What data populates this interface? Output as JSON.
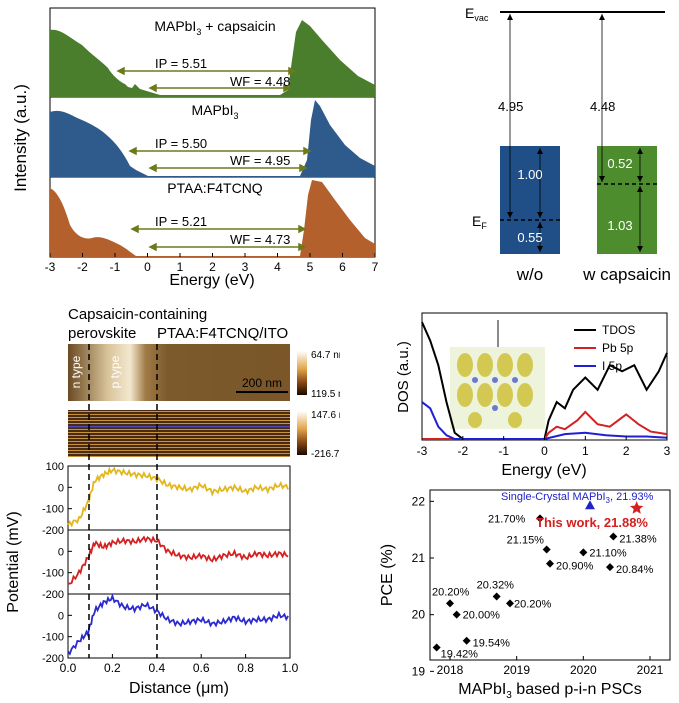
{
  "colors": {
    "green": "#4a7d2c",
    "blue": "#2f5a8c",
    "orange": "#b4602c",
    "arrow": "#6d7a1c",
    "tdos": "#000000",
    "pb5p": "#d42020",
    "i5p": "#1f1fd6",
    "yellow_trace": "#e2b61c",
    "red_trace": "#d42020",
    "blue_trace": "#2a2ad0",
    "scan_line": "#2233dd",
    "highlight_pce": "#d42020",
    "single_crystal": "#2222cc",
    "green_box": "#4e8d2e",
    "blue_box": "#1f4f86"
  },
  "upsPanel": {
    "yLabel": "Intensity (a.u.)",
    "xLabel": "Energy (eV)",
    "xTicks": [
      "-3",
      "-2",
      "-1",
      "0",
      "1",
      "2",
      "3",
      "4",
      "5",
      "6",
      "7"
    ],
    "sub1": {
      "label_main": "MAPbI",
      "label_sub": "3",
      "label_rest": " + capsaicin",
      "ip": "IP = 5.51",
      "wf": "WF = 4.48"
    },
    "sub2": {
      "label_main": "MAPbI",
      "label_sub": "3",
      "ip": "IP = 5.50",
      "wf": "WF = 4.95"
    },
    "sub3": {
      "label_main": "PTAA:F4TCNQ",
      "ip": "IP = 5.21",
      "wf": "WF = 4.73"
    }
  },
  "energyDiagram": {
    "evac_main": "E",
    "evac_sub": "vac",
    "ef_main": "E",
    "ef_sub": "F",
    "left": {
      "gap_label": "4.95",
      "upper": "1.00",
      "lower": "0.55",
      "caption": "w/o"
    },
    "right": {
      "gap_label": "4.48",
      "upper": "0.52",
      "lower": "1.03",
      "caption": "w capsaicin"
    }
  },
  "kpfmPanel": {
    "title_left_line1": "Capsaicin-containing",
    "title_left_line2": "perovskite",
    "title_right": "PTAA:F4TCNQ/ITO",
    "n_type": "n type",
    "p_type": "p type",
    "scalebar": "200 nm",
    "height_max": "64.7 nm",
    "height_min": "119.5 nm",
    "pot_max": "147.6 mV",
    "pot_min": "-216.7 mV",
    "yLabel": "Potential (mV)",
    "xLabel": "Distance (μm)",
    "xTicks": [
      "0.0",
      "0.2",
      "0.4",
      "0.6",
      "0.8",
      "1.0"
    ],
    "yTicks": [
      "100",
      "0",
      "-100",
      "-200"
    ]
  },
  "dosPanel": {
    "yLabel": "DOS (a.u.)",
    "xLabel": "Energy (eV)",
    "xTicks": [
      "-3",
      "-2",
      "-1",
      "0",
      "1",
      "2",
      "3"
    ],
    "legend": [
      "TDOS",
      "Pb 5p",
      "I 5p"
    ]
  },
  "pcePanel": {
    "yLabel": "PCE (%)",
    "xLabel_main": "MAPbI",
    "xLabel_sub": "3",
    "xLabel_rest": " based p-i-n PSCs",
    "xTicks": [
      "2018",
      "2019",
      "2020",
      "2021"
    ],
    "yTicks": [
      "19",
      "20",
      "21",
      "22"
    ],
    "single_crystal_label": "Single-Crystal MAPbI",
    "single_crystal_sub": "3",
    "single_crystal_value": ", 21.93%",
    "this_work_label": "This work, 21.88%"
  },
  "chart_data": [
    {
      "type": "area",
      "title": "",
      "xlabel": "Energy (eV)",
      "ylabel": "Intensity (a.u.)",
      "xlim": [
        -3,
        7
      ],
      "series": [
        {
          "name": "MAPbI3 + capsaicin",
          "ip": 5.51,
          "wf": 4.48
        },
        {
          "name": "MAPbI3",
          "ip": 5.5,
          "wf": 4.95
        },
        {
          "name": "PTAA:F4TCNQ",
          "ip": 5.21,
          "wf": 4.73
        }
      ]
    },
    {
      "type": "bar",
      "title": "",
      "categories": [
        "w/o",
        "w capsaicin"
      ],
      "series": [
        {
          "name": "Evac to EF",
          "values": [
            4.95,
            4.48
          ]
        },
        {
          "name": "EF to upper",
          "values": [
            1.0,
            0.52
          ]
        },
        {
          "name": "lower to EF",
          "values": [
            0.55,
            1.03
          ]
        }
      ]
    },
    {
      "type": "line",
      "title": "",
      "xlabel": "Distance (μm)",
      "ylabel": "Potential (mV)",
      "xlim": [
        0,
        1.0
      ],
      "ylim": [
        -200,
        100
      ],
      "series": [
        {
          "name": "trace1",
          "x": [
            0,
            0.05,
            0.09,
            0.12,
            0.16,
            0.2,
            0.25,
            0.3,
            0.35,
            0.4,
            0.45,
            0.5,
            0.55,
            0.6,
            0.65,
            0.7,
            0.75,
            0.8,
            0.85,
            0.9,
            0.95,
            1.0
          ],
          "values": [
            -175,
            -150,
            -70,
            30,
            60,
            80,
            70,
            60,
            55,
            40,
            10,
            0,
            -10,
            10,
            -20,
            -10,
            0,
            -20,
            0,
            -10,
            10,
            0
          ]
        },
        {
          "name": "trace2",
          "x": [
            0,
            0.05,
            0.09,
            0.12,
            0.16,
            0.2,
            0.25,
            0.3,
            0.35,
            0.4,
            0.45,
            0.5,
            0.55,
            0.6,
            0.65,
            0.7,
            0.75,
            0.8,
            0.85,
            0.9,
            0.95,
            1.0
          ],
          "values": [
            -160,
            -100,
            -30,
            40,
            20,
            40,
            50,
            45,
            60,
            50,
            0,
            -20,
            -30,
            -20,
            -40,
            -20,
            -10,
            -30,
            -10,
            -20,
            -10,
            -20
          ]
        },
        {
          "name": "trace3",
          "x": [
            0,
            0.05,
            0.09,
            0.12,
            0.16,
            0.2,
            0.25,
            0.3,
            0.35,
            0.4,
            0.45,
            0.5,
            0.55,
            0.6,
            0.65,
            0.7,
            0.75,
            0.8,
            0.85,
            0.9,
            0.95,
            1.0
          ],
          "values": [
            -180,
            -120,
            -80,
            20,
            60,
            80,
            40,
            30,
            50,
            20,
            -20,
            -40,
            -30,
            -20,
            -40,
            -30,
            -10,
            -30,
            -20,
            -20,
            0,
            -10
          ]
        }
      ]
    },
    {
      "type": "line",
      "title": "",
      "xlabel": "Energy (eV)",
      "ylabel": "DOS (a.u.)",
      "xlim": [
        -3,
        3
      ],
      "series": [
        {
          "name": "TDOS",
          "x": [
            -3,
            -2.8,
            -2.6,
            -2.4,
            -2.2,
            -2,
            -1,
            0,
            0.1,
            0.3,
            0.5,
            0.7,
            1,
            1.3,
            1.6,
            1.9,
            2.2,
            2.5,
            2.8,
            3
          ],
          "values": [
            9.5,
            8,
            6,
            3,
            0.5,
            0,
            0,
            0,
            1.5,
            3,
            2.5,
            4,
            5,
            4,
            6,
            5.5,
            6,
            4,
            5.5,
            7
          ]
        },
        {
          "name": "Pb 5p",
          "x": [
            -3,
            -2,
            -1,
            0,
            0.1,
            0.3,
            0.5,
            0.8,
            1,
            1.3,
            1.6,
            2,
            2.3,
            2.6,
            3
          ],
          "values": [
            0,
            0,
            0,
            0,
            0.5,
            1.0,
            0.8,
            1.5,
            2.2,
            1.2,
            1.0,
            2.0,
            1.2,
            0.6,
            0.4
          ]
        },
        {
          "name": "I 5p",
          "x": [
            -3,
            -2.8,
            -2.6,
            -2.4,
            -2.2,
            -2,
            -1,
            0,
            0.5,
            1,
            1.5,
            2,
            2.5,
            3
          ],
          "values": [
            3,
            2.5,
            1,
            0.3,
            0,
            0,
            0,
            0,
            0.4,
            0.5,
            0.3,
            0.2,
            0.2,
            0.1
          ]
        }
      ]
    },
    {
      "type": "scatter",
      "title": "",
      "xlabel": "MAPbI3 based p-i-n PSCs",
      "ylabel": "PCE (%)",
      "xlim": [
        2017.7,
        2021.3
      ],
      "ylim": [
        19.2,
        22.2
      ],
      "points": [
        {
          "x": 2017.8,
          "y": 19.42,
          "label": "19.42%"
        },
        {
          "x": 2018.25,
          "y": 19.54,
          "label": "19.54%"
        },
        {
          "x": 2018.1,
          "y": 20.0,
          "label": "20.00%"
        },
        {
          "x": 2018.0,
          "y": 20.2,
          "label": "20.20%"
        },
        {
          "x": 2018.7,
          "y": 20.32,
          "label": "20.32%"
        },
        {
          "x": 2018.9,
          "y": 20.2,
          "label": "20.20%"
        },
        {
          "x": 2019.35,
          "y": 21.7,
          "label": "21.70%"
        },
        {
          "x": 2019.45,
          "y": 21.15,
          "label": "21.15%"
        },
        {
          "x": 2019.5,
          "y": 20.9,
          "label": "20.90%"
        },
        {
          "x": 2020.0,
          "y": 21.1,
          "label": "21.10%"
        },
        {
          "x": 2020.45,
          "y": 21.38,
          "label": "21.38%"
        },
        {
          "x": 2020.4,
          "y": 20.84,
          "label": "20.84%"
        },
        {
          "x": 2020.1,
          "y": 21.93,
          "label": "Single-Crystal MAPbI3, 21.93%"
        },
        {
          "x": 2020.8,
          "y": 21.88,
          "label": "This work, 21.88%"
        }
      ]
    }
  ]
}
